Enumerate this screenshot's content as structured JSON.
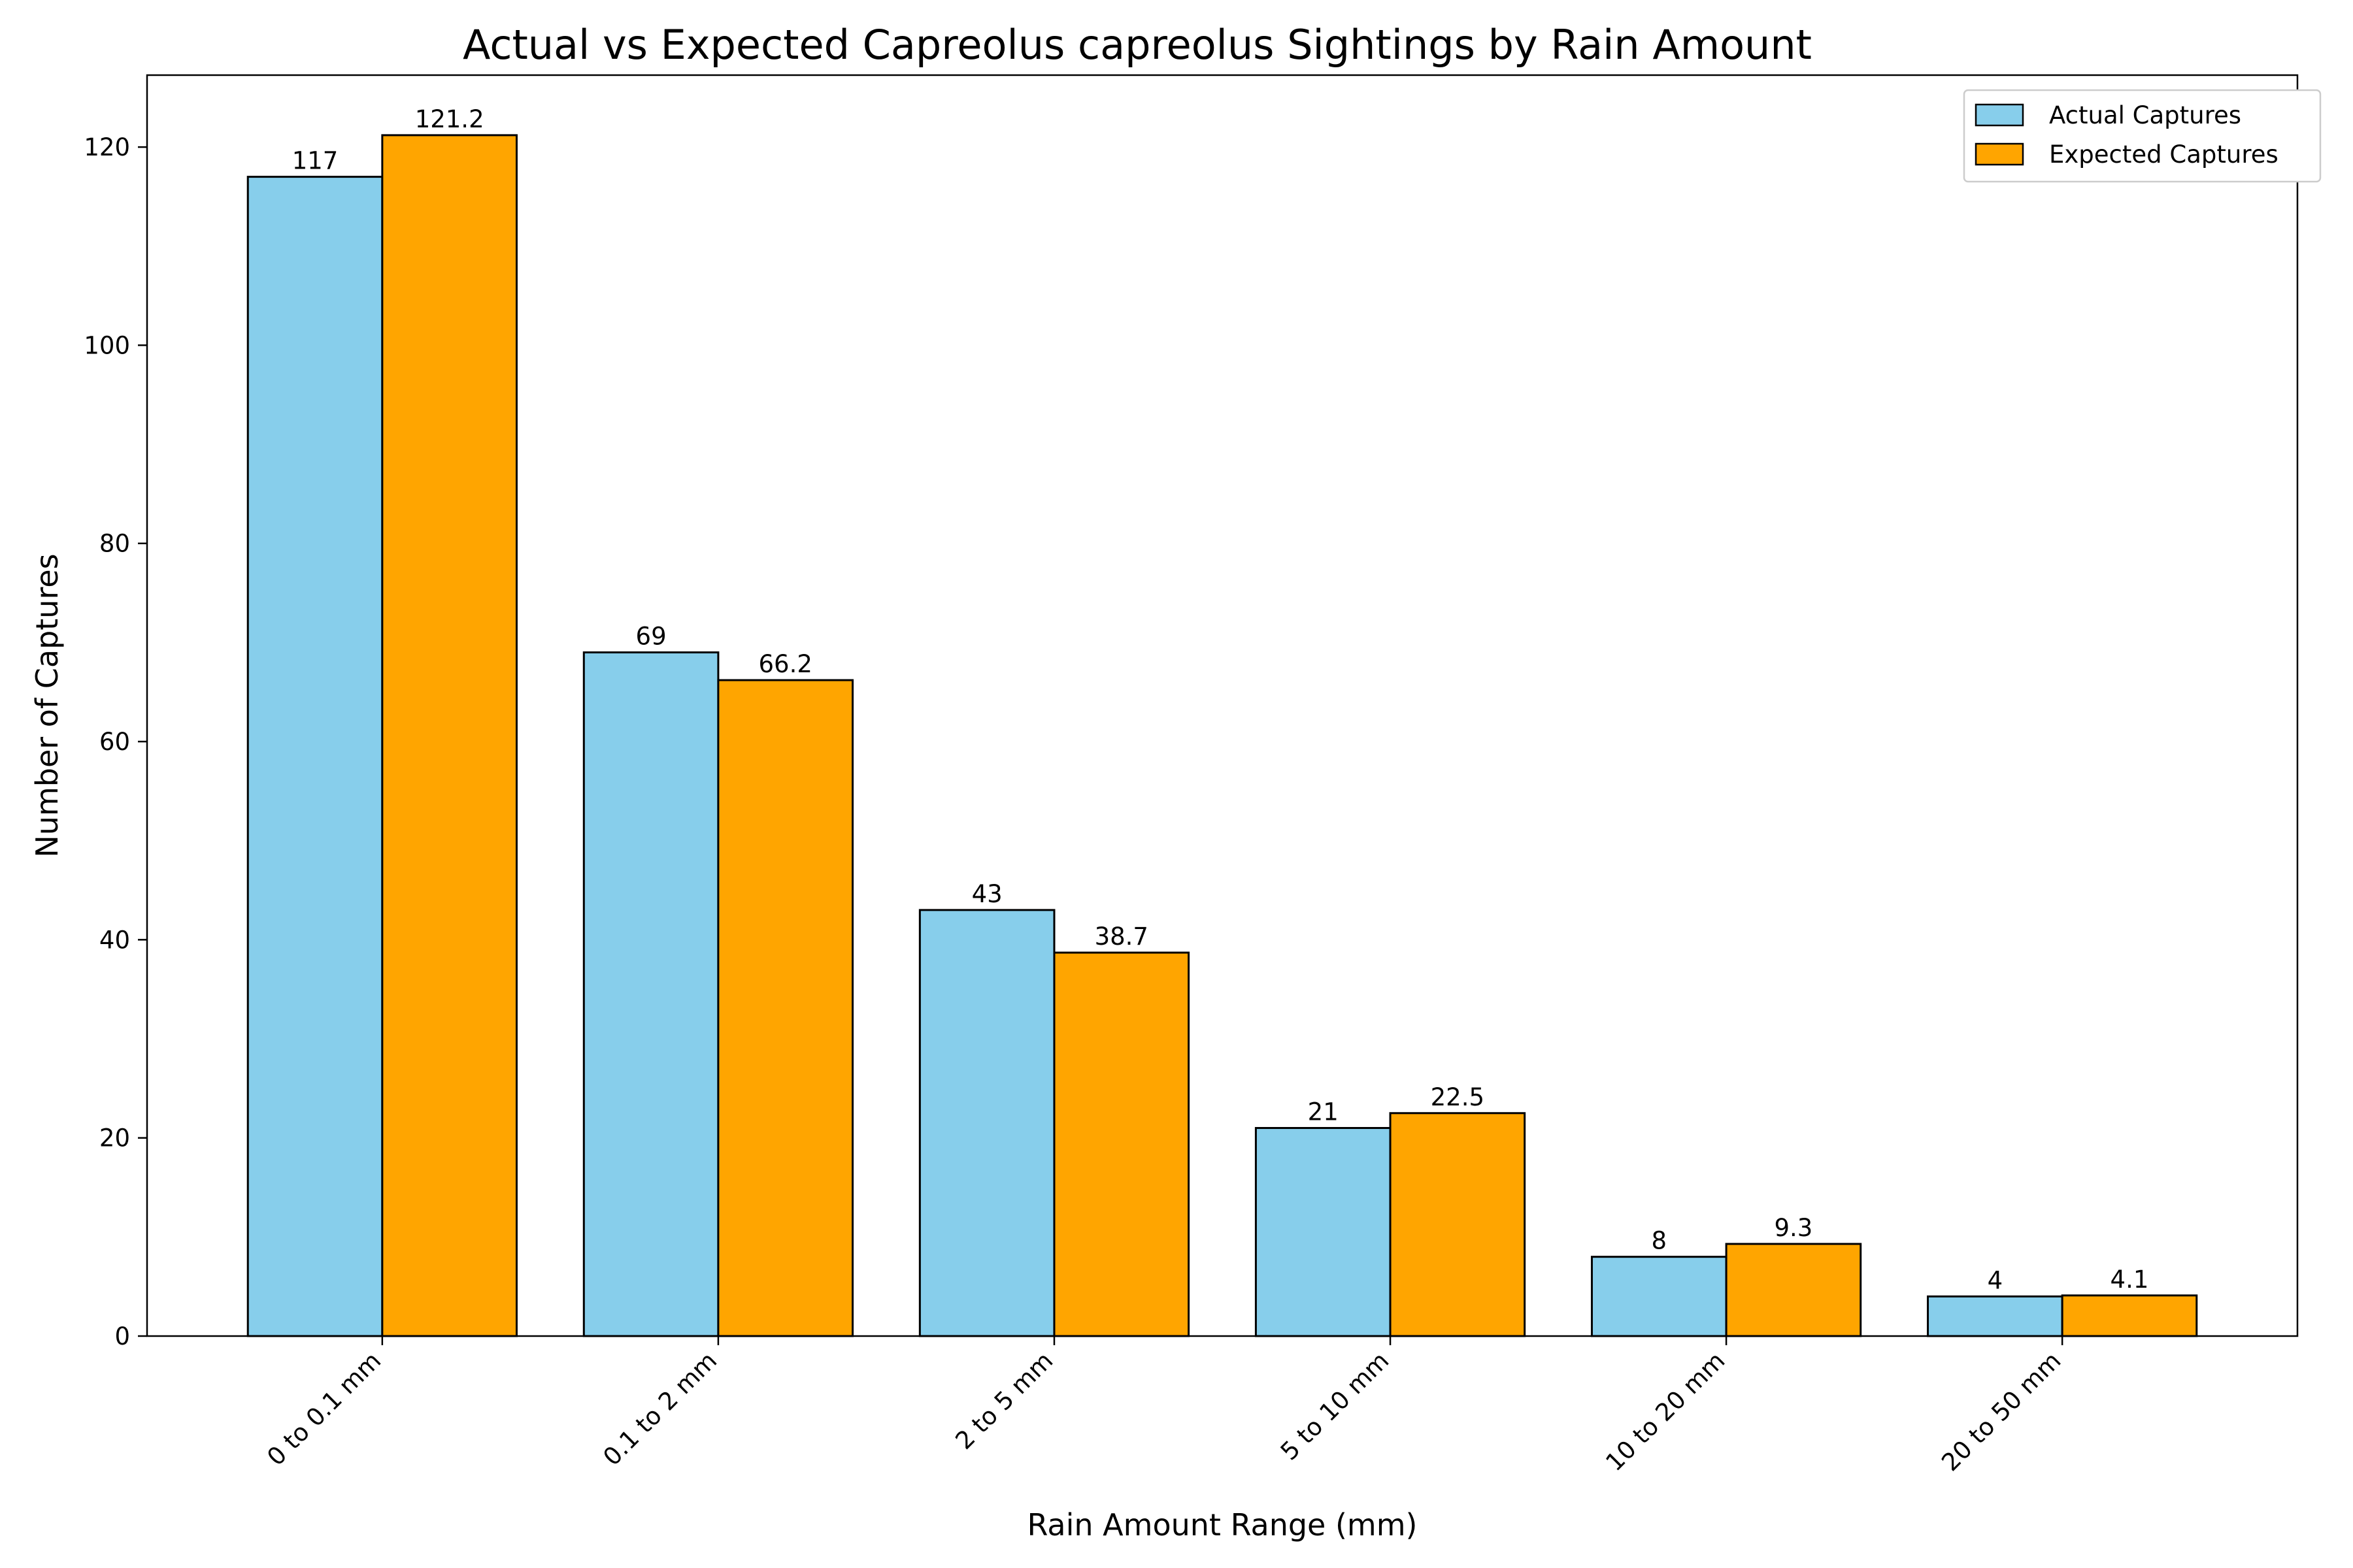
{
  "chart_data": {
    "type": "bar",
    "title": "Actual vs Expected Capreolus capreolus Sightings by Rain Amount",
    "xlabel": "Rain Amount Range (mm)",
    "ylabel": "Number of Captures",
    "categories": [
      "0 to 0.1 mm",
      "0.1 to 2 mm",
      "2 to 5 mm",
      "5 to 10 mm",
      "10 to 20 mm",
      "20 to 50 mm"
    ],
    "series": [
      {
        "name": "Actual Captures",
        "values": [
          117,
          69,
          43,
          21,
          8,
          4
        ],
        "labels": [
          "117",
          "69",
          "43",
          "21",
          "8",
          "4"
        ],
        "color": "#87CEEB"
      },
      {
        "name": "Expected Captures",
        "values": [
          121.2,
          66.2,
          38.7,
          22.5,
          9.3,
          4.1
        ],
        "labels": [
          "121.2",
          "66.2",
          "38.7",
          "22.5",
          "9.3",
          "4.1"
        ],
        "color": "#FFA500"
      }
    ],
    "ylim": [
      0,
      127.26
    ],
    "yticks": [
      0,
      20,
      40,
      60,
      80,
      100,
      120
    ],
    "grid": false,
    "legend_position": "top-right",
    "x_tick_rotation": "45 degrees"
  }
}
